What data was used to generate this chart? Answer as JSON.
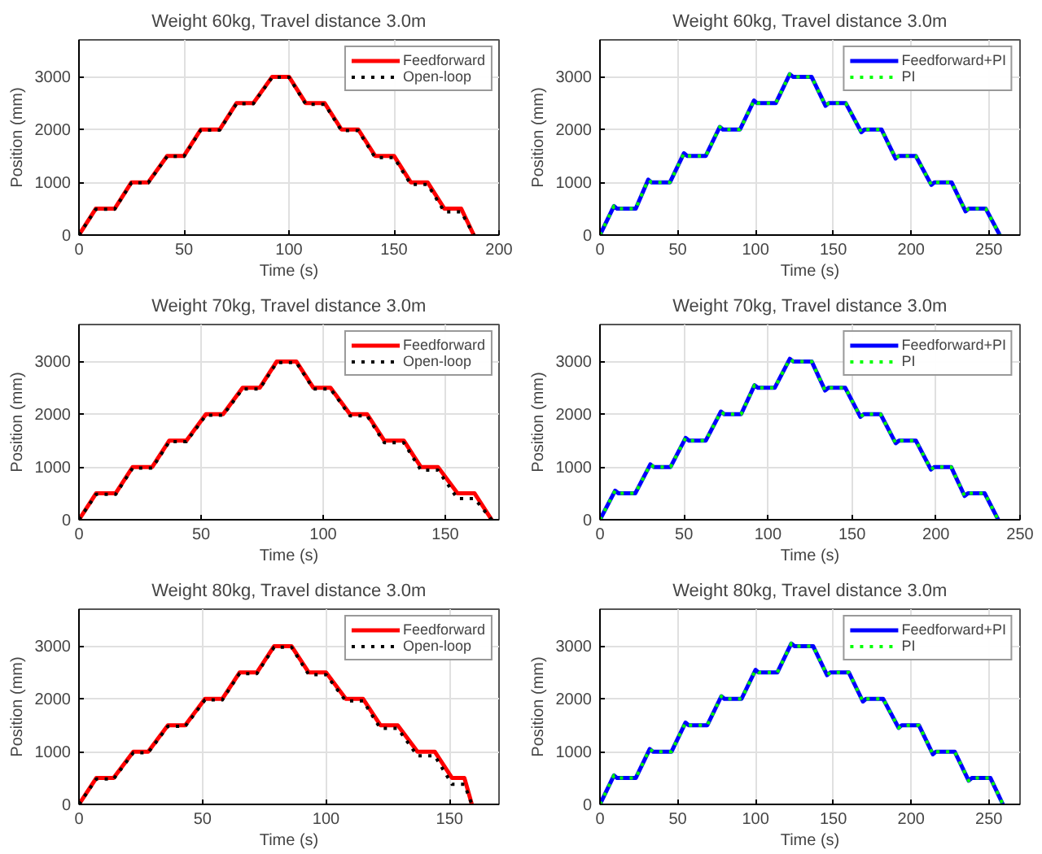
{
  "chart_data": [
    {
      "type": "line",
      "title": "Weight 60kg, Travel distance 3.0m",
      "xlabel": "Time (s)",
      "ylabel": "Position (mm)",
      "xlim": [
        0,
        200
      ],
      "xticks": [
        0,
        50,
        100,
        150,
        200
      ],
      "ylim": [
        0,
        3700
      ],
      "yticks": [
        0,
        1000,
        2000,
        3000
      ],
      "grid": true,
      "legend": "top right",
      "series": [
        {
          "name": "Feedforward",
          "color": "#ff0000",
          "line_style": "solid",
          "x": [
            0,
            8,
            17,
            25,
            33,
            42,
            50,
            58,
            67,
            75,
            83,
            92,
            100,
            108,
            117,
            125,
            133,
            141,
            150,
            158,
            166,
            174,
            182,
            188
          ],
          "values": [
            0,
            500,
            500,
            1000,
            1000,
            1500,
            1500,
            2000,
            2000,
            2500,
            2500,
            3000,
            3000,
            2500,
            2500,
            2000,
            2000,
            1500,
            1500,
            1000,
            1000,
            500,
            500,
            0
          ]
        },
        {
          "name": "Open-loop",
          "color": "#000000",
          "line_style": "dotted",
          "x": [
            0,
            8,
            17,
            25,
            33,
            42,
            50,
            58,
            67,
            75,
            83,
            92,
            100,
            108,
            117,
            125,
            133,
            141,
            150,
            158,
            166,
            174,
            182,
            188
          ],
          "values": [
            0,
            490,
            490,
            990,
            990,
            1490,
            1490,
            1990,
            1990,
            2490,
            2490,
            2990,
            2990,
            2480,
            2480,
            1980,
            1980,
            1470,
            1470,
            960,
            960,
            440,
            440,
            0
          ]
        }
      ]
    },
    {
      "type": "line",
      "title": "Weight 60kg, Travel distance 3.0m",
      "xlabel": "Time (s)",
      "ylabel": "Position (mm)",
      "xlim": [
        0,
        270
      ],
      "xticks": [
        0,
        50,
        100,
        150,
        200,
        250
      ],
      "ylim": [
        0,
        3700
      ],
      "yticks": [
        0,
        1000,
        2000,
        3000
      ],
      "grid": true,
      "legend": "top right",
      "series": [
        {
          "name": "Feedforward+PI",
          "color": "#0000ff",
          "line_style": "solid",
          "x": [
            0,
            9,
            11,
            23,
            31,
            33,
            45,
            54,
            56,
            68,
            77,
            79,
            90,
            99,
            101,
            113,
            122,
            124,
            136,
            145,
            147,
            158,
            168,
            170,
            181,
            190,
            192,
            203,
            213,
            215,
            226,
            235,
            237,
            248,
            257
          ],
          "values": [
            0,
            550,
            500,
            500,
            1050,
            1000,
            1000,
            1550,
            1500,
            1500,
            2050,
            2000,
            2000,
            2550,
            2500,
            2500,
            3050,
            3000,
            3000,
            2450,
            2500,
            2500,
            1950,
            2000,
            2000,
            1450,
            1500,
            1500,
            950,
            1000,
            1000,
            450,
            500,
            500,
            0
          ]
        },
        {
          "name": "PI",
          "color": "#00ff00",
          "line_style": "dotted",
          "x": [
            0,
            9,
            11,
            23,
            31,
            33,
            45,
            54,
            56,
            68,
            77,
            79,
            90,
            99,
            101,
            113,
            122,
            124,
            136,
            145,
            147,
            158,
            168,
            170,
            181,
            190,
            192,
            203,
            213,
            215,
            226,
            235,
            237,
            248,
            257
          ],
          "values": [
            0,
            550,
            500,
            500,
            1050,
            1000,
            1000,
            1550,
            1500,
            1500,
            2050,
            2000,
            2000,
            2550,
            2500,
            2500,
            3050,
            3000,
            3000,
            2450,
            2500,
            2500,
            1950,
            2000,
            2000,
            1450,
            1500,
            1500,
            950,
            1000,
            1000,
            450,
            500,
            500,
            0
          ]
        }
      ]
    },
    {
      "type": "line",
      "title": "Weight 70kg, Travel distance 3.0m",
      "xlabel": "Time (s)",
      "ylabel": "Position (mm)",
      "xlim": [
        0,
        172
      ],
      "xticks": [
        0,
        50,
        100,
        150
      ],
      "ylim": [
        0,
        3700
      ],
      "yticks": [
        0,
        1000,
        2000,
        3000
      ],
      "grid": true,
      "legend": "top right",
      "series": [
        {
          "name": "Feedforward",
          "color": "#ff0000",
          "line_style": "solid",
          "x": [
            0,
            7,
            15,
            22,
            30,
            37,
            44,
            52,
            59,
            67,
            74,
            81,
            89,
            96,
            103,
            111,
            118,
            125,
            133,
            140,
            147,
            155,
            162,
            169
          ],
          "values": [
            0,
            500,
            500,
            1000,
            1000,
            1500,
            1500,
            2000,
            2000,
            2500,
            2500,
            3000,
            3000,
            2500,
            2500,
            2000,
            2000,
            1500,
            1500,
            1000,
            1000,
            500,
            500,
            0
          ]
        },
        {
          "name": "Open-loop",
          "color": "#000000",
          "line_style": "dotted",
          "x": [
            0,
            7,
            15,
            22,
            30,
            37,
            44,
            52,
            59,
            67,
            74,
            81,
            89,
            96,
            103,
            111,
            118,
            125,
            133,
            140,
            147,
            155,
            162,
            169
          ],
          "values": [
            0,
            480,
            480,
            980,
            980,
            1480,
            1480,
            1980,
            1980,
            2480,
            2480,
            2980,
            2980,
            2480,
            2480,
            1970,
            1970,
            1460,
            1460,
            940,
            940,
            400,
            400,
            0
          ]
        }
      ]
    },
    {
      "type": "line",
      "title": "Weight 70kg, Travel distance 3.0m",
      "xlabel": "Time (s)",
      "ylabel": "Position (mm)",
      "xlim": [
        0,
        250
      ],
      "xticks": [
        0,
        50,
        100,
        150,
        200,
        250
      ],
      "ylim": [
        0,
        3700
      ],
      "yticks": [
        0,
        1000,
        2000,
        3000
      ],
      "grid": true,
      "legend": "top right",
      "series": [
        {
          "name": "Feedforward+PI",
          "color": "#0000ff",
          "line_style": "solid",
          "x": [
            0,
            9,
            11,
            21,
            30,
            32,
            42,
            51,
            53,
            63,
            72,
            74,
            84,
            92,
            94,
            104,
            113,
            115,
            126,
            134,
            136,
            146,
            155,
            157,
            167,
            176,
            178,
            188,
            197,
            199,
            209,
            217,
            219,
            229,
            237
          ],
          "values": [
            0,
            550,
            500,
            500,
            1050,
            1000,
            1000,
            1550,
            1500,
            1500,
            2050,
            2000,
            2000,
            2550,
            2500,
            2500,
            3050,
            3000,
            3000,
            2450,
            2500,
            2500,
            1950,
            2000,
            2000,
            1450,
            1500,
            1500,
            950,
            1000,
            1000,
            450,
            500,
            500,
            0
          ]
        },
        {
          "name": "PI",
          "color": "#00ff00",
          "line_style": "dotted",
          "x": [
            0,
            9,
            11,
            21,
            30,
            32,
            42,
            51,
            53,
            63,
            72,
            74,
            84,
            92,
            94,
            104,
            113,
            115,
            126,
            134,
            136,
            146,
            155,
            157,
            167,
            176,
            178,
            188,
            197,
            199,
            209,
            217,
            219,
            229,
            237
          ],
          "values": [
            0,
            550,
            500,
            500,
            1050,
            1000,
            1000,
            1550,
            1500,
            1500,
            2050,
            2000,
            2000,
            2550,
            2500,
            2500,
            3050,
            3000,
            3000,
            2450,
            2500,
            2500,
            1950,
            2000,
            2000,
            1450,
            1500,
            1500,
            950,
            1000,
            1000,
            450,
            500,
            500,
            0
          ]
        }
      ]
    },
    {
      "type": "line",
      "title": "Weight 80kg, Travel distance 3.0m",
      "xlabel": "Time (s)",
      "ylabel": "Position (mm)",
      "xlim": [
        0,
        170
      ],
      "xticks": [
        0,
        50,
        100,
        150
      ],
      "ylim": [
        0,
        3700
      ],
      "yticks": [
        0,
        1000,
        2000,
        3000
      ],
      "grid": true,
      "legend": "top right",
      "series": [
        {
          "name": "Feedforward",
          "color": "#ff0000",
          "line_style": "solid",
          "x": [
            0,
            7,
            14,
            22,
            28,
            36,
            43,
            51,
            58,
            65,
            72,
            79,
            86,
            93,
            100,
            108,
            115,
            122,
            129,
            137,
            144,
            151,
            156,
            159
          ],
          "values": [
            0,
            500,
            500,
            1000,
            1000,
            1500,
            1500,
            2000,
            2000,
            2500,
            2500,
            3000,
            3000,
            2500,
            2500,
            2000,
            2000,
            1500,
            1500,
            1000,
            1000,
            500,
            500,
            0
          ]
        },
        {
          "name": "Open-loop",
          "color": "#000000",
          "line_style": "dotted",
          "x": [
            0,
            7,
            14,
            22,
            28,
            36,
            43,
            51,
            58,
            65,
            72,
            79,
            86,
            93,
            100,
            108,
            115,
            122,
            129,
            137,
            144,
            151,
            156,
            159
          ],
          "values": [
            0,
            480,
            480,
            980,
            980,
            1480,
            1480,
            1980,
            1980,
            2480,
            2480,
            2980,
            2980,
            2460,
            2460,
            1960,
            1960,
            1440,
            1440,
            920,
            920,
            380,
            380,
            0
          ]
        }
      ]
    },
    {
      "type": "line",
      "title": "Weight 80kg, Travel distance 3.0m",
      "xlabel": "Time (s)",
      "ylabel": "Position (mm)",
      "xlim": [
        0,
        270
      ],
      "xticks": [
        0,
        50,
        100,
        150,
        200,
        250
      ],
      "ylim": [
        0,
        3700
      ],
      "yticks": [
        0,
        1000,
        2000,
        3000
      ],
      "grid": true,
      "legend": "top right",
      "series": [
        {
          "name": "Feedforward+PI",
          "color": "#0000ff",
          "line_style": "solid",
          "x": [
            0,
            9,
            11,
            23,
            32,
            34,
            46,
            55,
            57,
            69,
            78,
            80,
            91,
            100,
            102,
            114,
            123,
            125,
            137,
            146,
            148,
            160,
            169,
            171,
            182,
            192,
            194,
            205,
            214,
            216,
            228,
            237,
            239,
            251,
            259
          ],
          "values": [
            0,
            550,
            500,
            500,
            1050,
            1000,
            1000,
            1550,
            1500,
            1500,
            2050,
            2000,
            2000,
            2550,
            2500,
            2500,
            3050,
            3000,
            3000,
            2450,
            2500,
            2500,
            1950,
            2000,
            2000,
            1450,
            1500,
            1500,
            950,
            1000,
            1000,
            450,
            500,
            500,
            0
          ]
        },
        {
          "name": "PI",
          "color": "#00ff00",
          "line_style": "dotted",
          "x": [
            0,
            9,
            11,
            23,
            32,
            34,
            46,
            55,
            57,
            69,
            78,
            80,
            91,
            100,
            102,
            114,
            123,
            125,
            137,
            146,
            148,
            160,
            169,
            171,
            182,
            192,
            194,
            205,
            214,
            216,
            228,
            237,
            239,
            251,
            259
          ],
          "values": [
            0,
            550,
            500,
            500,
            1050,
            1000,
            1000,
            1550,
            1500,
            1500,
            2050,
            2000,
            2000,
            2550,
            2500,
            2500,
            3050,
            3000,
            3000,
            2450,
            2500,
            2500,
            1950,
            2000,
            2000,
            1450,
            1500,
            1500,
            950,
            1000,
            1000,
            450,
            500,
            500,
            0
          ]
        }
      ]
    }
  ]
}
